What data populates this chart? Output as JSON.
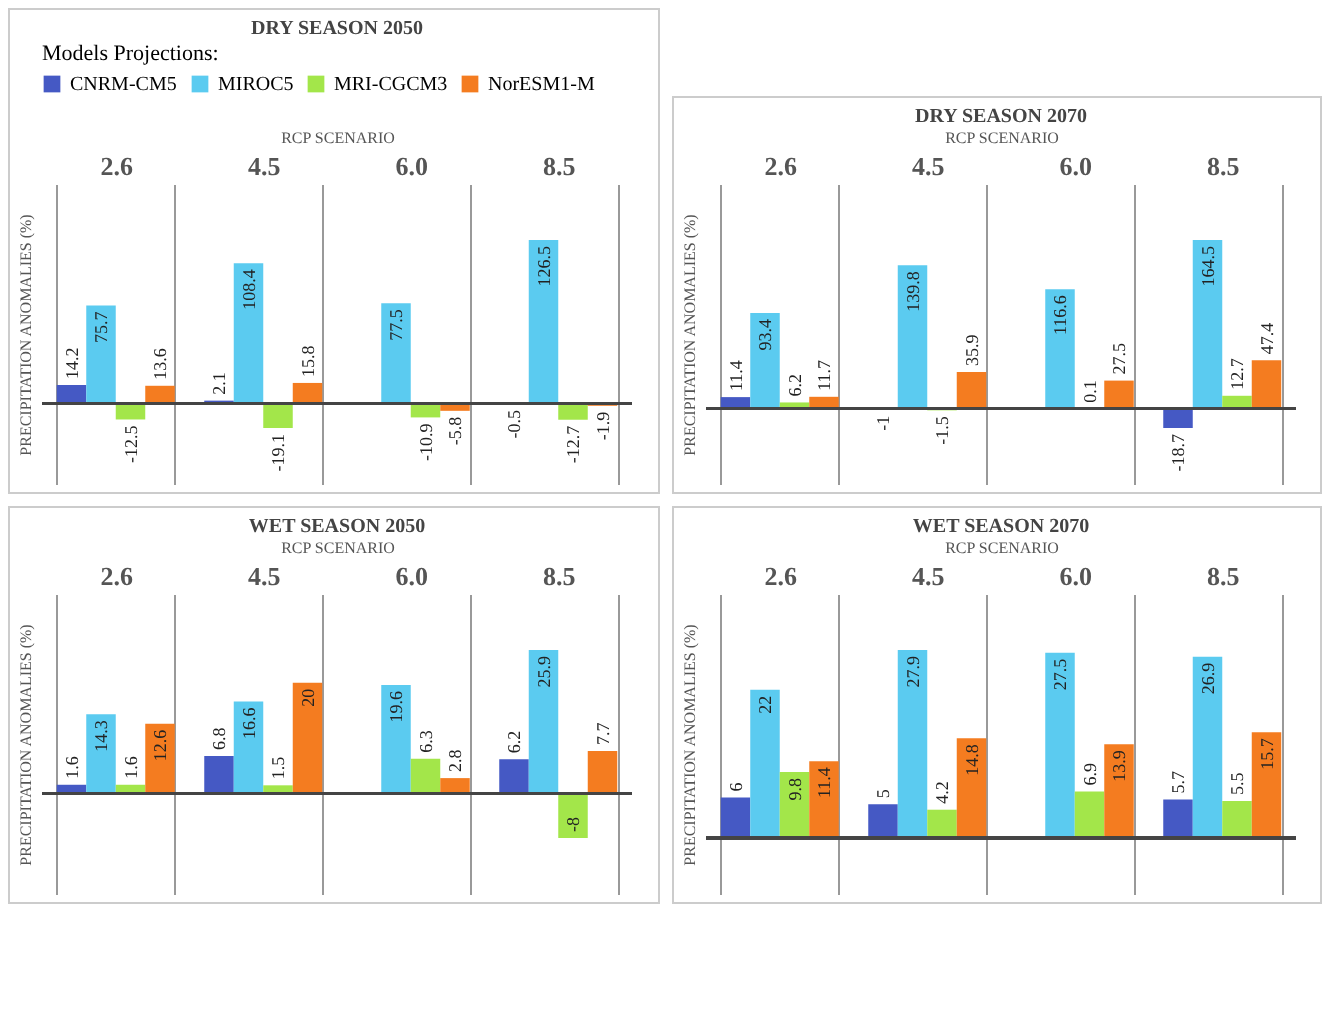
{
  "chart_data": [
    {
      "type": "bar",
      "title": "DRY SEASON 2050",
      "xlabel": "RCP SCENARIO",
      "ylabel": "PRECIPITATION  ANOMALIES  (%)",
      "legend_title": "Models Projections:",
      "legend": "top",
      "categories": [
        "2.6",
        "4.5",
        "6.0",
        "8.5"
      ],
      "series": [
        {
          "name": "CNRM-CM5",
          "color": "#4559c4",
          "values": [
            14.2,
            2.1,
            null,
            -0.5
          ]
        },
        {
          "name": "MIROC5",
          "color": "#5bcbf0",
          "values": [
            75.7,
            108.4,
            77.5,
            126.5
          ]
        },
        {
          "name": "MRI-CGCM3",
          "color": "#a3e64a",
          "values": [
            -12.5,
            -19.1,
            -10.9,
            -12.7
          ]
        },
        {
          "name": "NorESM1-M",
          "color": "#f47c20",
          "values": [
            13.6,
            15.8,
            -5.8,
            -1.9
          ]
        }
      ],
      "data_labels": true,
      "grid": "x",
      "tick_labels": "x",
      "ref_lines": [
        {
          "axis": "y",
          "value": 0
        }
      ]
    },
    {
      "type": "bar",
      "title": "DRY SEASON 2070",
      "xlabel": "RCP SCENARIO",
      "ylabel": "PRECIPITATION  ANOMALIES  (%)",
      "categories": [
        "2.6",
        "4.5",
        "6.0",
        "8.5"
      ],
      "series": [
        {
          "color": "#4559c4",
          "values": [
            11.4,
            -1,
            null,
            -18.7
          ]
        },
        {
          "color": "#5bcbf0",
          "values": [
            93.4,
            139.8,
            116.6,
            164.5
          ]
        },
        {
          "color": "#a3e64a",
          "values": [
            6.2,
            -1.5,
            0.1,
            12.7
          ]
        },
        {
          "color": "#f47c20",
          "values": [
            11.7,
            35.9,
            27.5,
            47.4
          ]
        }
      ],
      "data_labels": true,
      "grid": "x",
      "tick_labels": "x",
      "ref_lines": [
        {
          "axis": "y",
          "value": 0
        }
      ]
    },
    {
      "type": "bar",
      "title": "WET SEASON 2050",
      "xlabel": "RCP SCENARIO",
      "ylabel": "PRECIPITATION  ANOMALIES  (%)",
      "categories": [
        "2.6",
        "4.5",
        "6.0",
        "8.5"
      ],
      "series": [
        {
          "color": "#4559c4",
          "values": [
            1.6,
            6.8,
            null,
            6.2
          ]
        },
        {
          "color": "#5bcbf0",
          "values": [
            14.3,
            16.6,
            19.6,
            25.9
          ]
        },
        {
          "color": "#a3e64a",
          "values": [
            1.6,
            1.5,
            6.3,
            -8
          ]
        },
        {
          "color": "#f47c20",
          "values": [
            12.6,
            20,
            2.8,
            7.7
          ]
        }
      ],
      "data_labels": true,
      "grid": "x",
      "tick_labels": "x",
      "ref_lines": [
        {
          "axis": "y",
          "value": 0
        }
      ]
    },
    {
      "type": "bar",
      "title": "WET SEASON 2070",
      "xlabel": "RCP SCENARIO",
      "ylabel": "PRECIPITATION  ANOMALIES  (%)",
      "categories": [
        "2.6",
        "4.5",
        "6.0",
        "8.5"
      ],
      "series": [
        {
          "color": "#4559c4",
          "values": [
            6,
            5,
            null,
            5.7
          ]
        },
        {
          "color": "#5bcbf0",
          "values": [
            22,
            27.9,
            27.5,
            26.9
          ]
        },
        {
          "color": "#a3e64a",
          "values": [
            9.8,
            4.2,
            6.9,
            5.5
          ]
        },
        {
          "color": "#f47c20",
          "values": [
            11.4,
            14.8,
            13.9,
            15.7
          ]
        }
      ],
      "data_labels": true,
      "grid": "x",
      "tick_labels": "x",
      "ref_lines": [
        {
          "axis": "y",
          "value": 0
        }
      ]
    }
  ]
}
